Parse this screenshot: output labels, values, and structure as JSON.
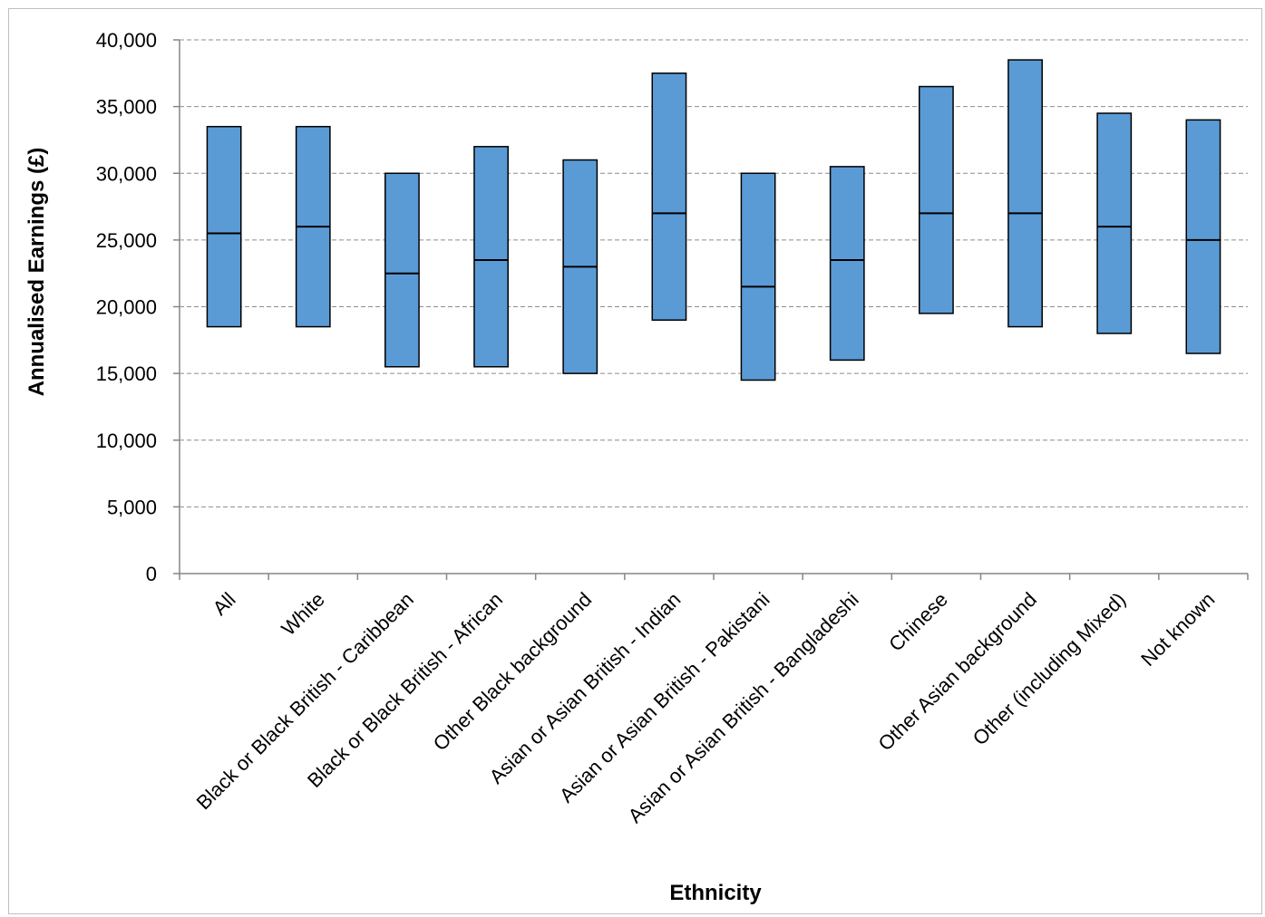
{
  "chart_data": {
    "type": "bar",
    "subtype": "floating-range-with-median",
    "title": "",
    "xlabel": "Ethnicity",
    "ylabel": "Annualised Earnings (£)",
    "ylim": [
      0,
      40000
    ],
    "yticks": [
      0,
      5000,
      10000,
      15000,
      20000,
      25000,
      30000,
      35000,
      40000
    ],
    "ytick_labels": [
      "0",
      "5,000",
      "10,000",
      "15,000",
      "20,000",
      "25,000",
      "30,000",
      "35,000",
      "40,000"
    ],
    "grid": true,
    "legend": "none",
    "bar_color": "#5b9bd5",
    "categories": [
      "All",
      "White",
      "Black or Black British - Caribbean",
      "Black or Black British - African",
      "Other Black background",
      "Asian or Asian British - Indian",
      "Asian or Asian British - Pakistani",
      "Asian or Asian British - Bangladeshi",
      "Chinese",
      "Other Asian background",
      "Other (including Mixed)",
      "Not known"
    ],
    "series": [
      {
        "values_low": [
          18500,
          18500,
          15500,
          15500,
          15000,
          19000,
          14500,
          16000,
          19500,
          18500,
          18000,
          16500
        ]
      },
      {
        "values_median": [
          25500,
          26000,
          22500,
          23500,
          23000,
          27000,
          21500,
          23500,
          27000,
          27000,
          26000,
          25000
        ]
      },
      {
        "values_high": [
          33500,
          33500,
          30000,
          32000,
          31000,
          37500,
          30000,
          30500,
          36500,
          38500,
          34500,
          34000
        ]
      }
    ]
  }
}
